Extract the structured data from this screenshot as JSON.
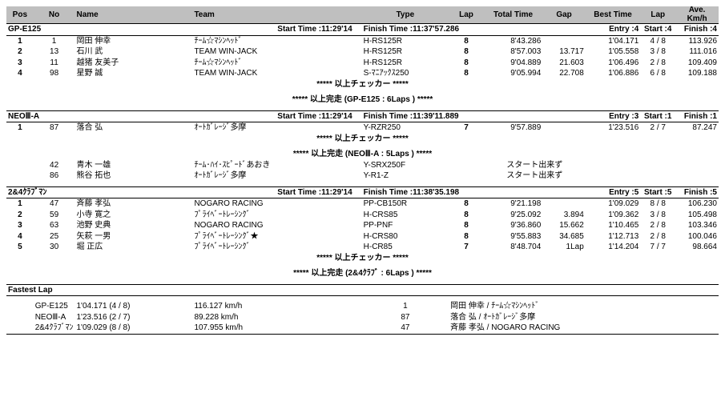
{
  "header": {
    "pos": "Pos",
    "no": "No",
    "name": "Name",
    "team": "Team",
    "type": "Type",
    "lap": "Lap",
    "total": "Total Time",
    "gap": "Gap",
    "best": "Best Time",
    "blap": "Lap",
    "ave": "Ave.\nKm/h"
  },
  "groups": [
    {
      "name": "GP-E125",
      "start_label": "Start Time :11:29'14",
      "finish_label": "Finish Time :11:37'57.286",
      "entry": "Entry :4",
      "start": "Start :4",
      "finish": "Finish :4",
      "rows": [
        {
          "pos": "1",
          "no": "1",
          "name": "岡田  伸幸",
          "team": "ﾁｰﾑ☆ﾏｼﾝﾍｯﾄﾞ",
          "type": "H-RS125R",
          "lap": "8",
          "total": "8'43.286",
          "gap": "",
          "best": "1'04.171",
          "blap": "4 / 8",
          "ave": "113.926"
        },
        {
          "pos": "2",
          "no": "13",
          "name": "石川  武",
          "team": "TEAM WIN-JACK",
          "type": "H-RS125R",
          "lap": "8",
          "total": "8'57.003",
          "gap": "13.717",
          "best": "1'05.558",
          "blap": "3 / 8",
          "ave": "111.016"
        },
        {
          "pos": "3",
          "no": "11",
          "name": "越猪  友美子",
          "team": "ﾁｰﾑ☆ﾏｼﾝﾍｯﾄﾞ",
          "type": "H-RS125R",
          "lap": "8",
          "total": "9'04.889",
          "gap": "21.603",
          "best": "1'06.496",
          "blap": "2 / 8",
          "ave": "109.409"
        },
        {
          "pos": "4",
          "no": "98",
          "name": "星野  誠",
          "team": "TEAM WIN-JACK",
          "type": "S-ﾏﾆｱｯｸｽ250",
          "lap": "8",
          "total": "9'05.994",
          "gap": "22.708",
          "best": "1'06.886",
          "blap": "6 / 8",
          "ave": "109.188"
        }
      ],
      "msg1": "*****  以上チェッカー  *****",
      "msg2": "*****  以上完走 (GP-E125 : 6Laps ) *****",
      "extras": []
    },
    {
      "name": "NEOⅢ-A",
      "start_label": "Start Time :11:29'14",
      "finish_label": "Finish Time :11:39'11.889",
      "entry": "Entry :3",
      "start": "Start :1",
      "finish": "Finish :1",
      "rows": [
        {
          "pos": "1",
          "no": "87",
          "name": "落合  弘",
          "team": "ｵｰﾄｶﾞﾚｰｼﾞ多摩",
          "type": "Y-RZR250",
          "lap": "7",
          "total": "9'57.889",
          "gap": "",
          "best": "1'23.516",
          "blap": "2 / 7",
          "ave": "87.247"
        }
      ],
      "msg1": "*****  以上チェッカー  *****",
      "msg2": "*****  以上完走 (NEOⅢ-A : 5Laps ) *****",
      "extras": [
        {
          "no": "42",
          "name": "青木  一雄",
          "team": "ﾁｰﾑ･ﾊｲ･ｽﾋﾟｰﾄﾞあおき",
          "type": "Y-SRX250F",
          "note": "スタート出来ず"
        },
        {
          "no": "86",
          "name": "熊谷  拓也",
          "team": "ｵｰﾄｶﾞﾚｰｼﾞ多摩",
          "type": "Y-R1-Z",
          "note": "スタート出来ず"
        }
      ]
    },
    {
      "name": "2&4ｸﾗﾌﾞﾏﾝ",
      "start_label": "Start Time :11:29'14",
      "finish_label": "Finish Time :11:38'35.198",
      "entry": "Entry :5",
      "start": "Start :5",
      "finish": "Finish :5",
      "rows": [
        {
          "pos": "1",
          "no": "47",
          "name": "斉藤  孝弘",
          "team": "NOGARO RACING",
          "type": "PP-CB150R",
          "lap": "8",
          "total": "9'21.198",
          "gap": "",
          "best": "1'09.029",
          "blap": "8 / 8",
          "ave": "106.230"
        },
        {
          "pos": "2",
          "no": "59",
          "name": "小寺  寛之",
          "team": "ﾌﾟﾗｲﾍﾞｰﾄﾚｰｼﾝｸﾞ",
          "type": "H-CRS85",
          "lap": "8",
          "total": "9'25.092",
          "gap": "3.894",
          "best": "1'09.362",
          "blap": "3 / 8",
          "ave": "105.498"
        },
        {
          "pos": "3",
          "no": "63",
          "name": "池野  史典",
          "team": "NOGARO RACING",
          "type": "PP-PNF",
          "lap": "8",
          "total": "9'36.860",
          "gap": "15.662",
          "best": "1'10.465",
          "blap": "2 / 8",
          "ave": "103.346"
        },
        {
          "pos": "4",
          "no": "25",
          "name": "矢萩  一男",
          "team": "ﾌﾟﾗｲﾍﾞｰﾄﾚｰｼﾝｸﾞ★",
          "type": "H-CRS80",
          "lap": "8",
          "total": "9'55.883",
          "gap": "34.685",
          "best": "1'12.713",
          "blap": "2 / 8",
          "ave": "100.046"
        },
        {
          "pos": "5",
          "no": "30",
          "name": "堀  正広",
          "team": "ﾌﾟﾗｲﾍﾞｰﾄﾚｰｼﾝｸﾞ",
          "type": "H-CR85",
          "lap": "7",
          "total": "8'48.704",
          "gap": "1Lap",
          "best": "1'14.204",
          "blap": "7 / 7",
          "ave": "98.664"
        }
      ],
      "msg1": "*****  以上チェッカー  *****",
      "msg2": "*****  以上完走 (2&4ｸﾗﾌﾞ : 6Laps ) *****",
      "extras": []
    }
  ],
  "fastest": {
    "title": "Fastest Lap",
    "rows": [
      {
        "class": "GP-E125",
        "time": "1'04.171 (4 / 8)",
        "speed": "116.127 km/h",
        "no": "1",
        "rider": "岡田  伸幸 / ﾁｰﾑ☆ﾏｼﾝﾍｯﾄﾞ"
      },
      {
        "class": "NEOⅢ-A",
        "time": "1'23.516 (2 / 7)",
        "speed": "89.228 km/h",
        "no": "87",
        "rider": "落合  弘 / ｵｰﾄｶﾞﾚｰｼﾞ多摩"
      },
      {
        "class": "2&4ｸﾗﾌﾞﾏﾝ",
        "time": "1'09.029 (8 / 8)",
        "speed": "107.955 km/h",
        "no": "47",
        "rider": "斉藤  孝弘 / NOGARO RACING"
      }
    ]
  }
}
